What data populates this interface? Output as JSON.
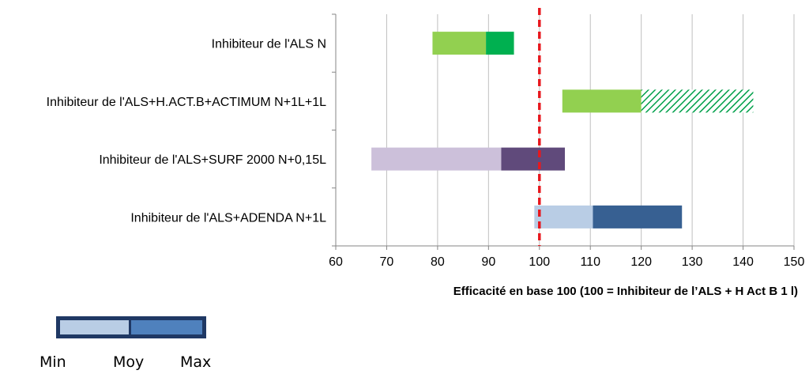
{
  "chart_data": {
    "type": "bar",
    "subtype": "horizontal-range",
    "xlabel": "Efficacité en base 100 (100 = Inhibiteur de l’ALS + H Act B 1 l)",
    "xlim": [
      60,
      150
    ],
    "xticks": [
      60,
      70,
      80,
      90,
      100,
      110,
      120,
      130,
      140,
      150
    ],
    "grid": true,
    "reference_line": {
      "value": 100,
      "color": "#e8181e",
      "style": "dashed"
    },
    "rows": [
      {
        "label": "Inhibiteur de l'ALS N",
        "min": 79,
        "moy": 89.5,
        "max": 95,
        "color_min_moy": "#92d050",
        "color_moy_max": "#00b050",
        "hatched": false
      },
      {
        "label": "Inhibiteur de l'ALS+H.ACT.B+ACTIMUM N+1L+1L",
        "min": 104.5,
        "moy": 120,
        "max": 142,
        "color_min_moy": "#92d050",
        "color_moy_max": "#00a04a",
        "hatched": true
      },
      {
        "label": "Inhibiteur de l'ALS+SURF 2000 N+0,15L",
        "min": 67,
        "moy": 92.5,
        "max": 105,
        "color_min_moy": "#ccc0da",
        "color_moy_max": "#604a7b",
        "hatched": false
      },
      {
        "label": "Inhibiteur de l'ALS+ADENDA N+1L",
        "min": 99,
        "moy": 110.5,
        "max": 128,
        "color_min_moy": "#b9cde5",
        "color_moy_max": "#376092",
        "hatched": false
      }
    ]
  },
  "legend": {
    "min_label": "Min",
    "moy_label": "Moy",
    "max_label": "Max",
    "color_min_moy": "#b9cde5",
    "color_moy_max": "#4f81bd",
    "border_color": "#1f3864"
  }
}
